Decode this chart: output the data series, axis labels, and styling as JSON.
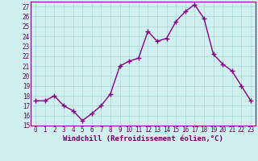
{
  "x": [
    0,
    1,
    2,
    3,
    4,
    5,
    6,
    7,
    8,
    9,
    10,
    11,
    12,
    13,
    14,
    15,
    16,
    17,
    18,
    19,
    20,
    21,
    22,
    23
  ],
  "y": [
    17.5,
    17.5,
    18.0,
    17.0,
    16.5,
    15.5,
    16.2,
    17.0,
    18.2,
    21.0,
    21.5,
    21.8,
    24.5,
    23.5,
    23.8,
    25.5,
    26.5,
    27.2,
    25.8,
    22.2,
    21.2,
    20.5,
    19.0,
    17.5
  ],
  "line_color": "#880088",
  "marker": "+",
  "bg_color": "#d0f0f0",
  "grid_color": "#aad8d8",
  "xlabel": "Windchill (Refroidissement éolien,°C)",
  "ylim": [
    15,
    27.5
  ],
  "xlim_left": -0.5,
  "xlim_right": 23.5,
  "yticks": [
    15,
    16,
    17,
    18,
    19,
    20,
    21,
    22,
    23,
    24,
    25,
    26,
    27
  ],
  "xticks": [
    0,
    1,
    2,
    3,
    4,
    5,
    6,
    7,
    8,
    9,
    10,
    11,
    12,
    13,
    14,
    15,
    16,
    17,
    18,
    19,
    20,
    21,
    22,
    23
  ],
  "tick_label_fontsize": 5.5,
  "xlabel_fontsize": 6.5,
  "line_width": 1.0,
  "marker_size": 4,
  "marker_color": "#880088"
}
